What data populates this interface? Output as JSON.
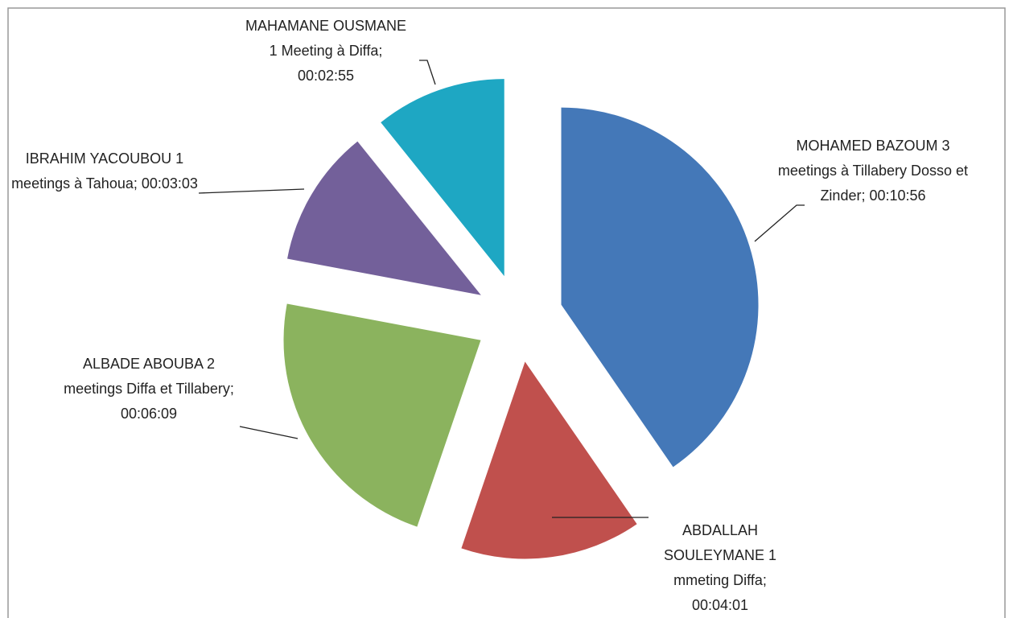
{
  "chart_data": {
    "type": "pie",
    "categories": [
      "MOHAMED BAZOUM 3 meetings à Tillabery Dosso et Zinder;",
      "ABDALLAH SOULEYMANE 1 mmeting Diffa;",
      "ALBADE ABOUBA 2 meetings Diffa et Tillabery;",
      "IBRAHIM YACOUBOU 1 meetings à Tahoua;",
      "MAHAMANE OUSMANE 1 Meeting à Diffa;"
    ],
    "values": [
      656,
      241,
      369,
      183,
      175
    ],
    "value_labels": [
      "00:10:56",
      "00:04:01",
      "00:06:09",
      "00:03:03",
      "00:02:55"
    ],
    "colors": [
      "#4478b8",
      "#c0504d",
      "#8bb35e",
      "#73609a",
      "#1ea7c3"
    ]
  }
}
